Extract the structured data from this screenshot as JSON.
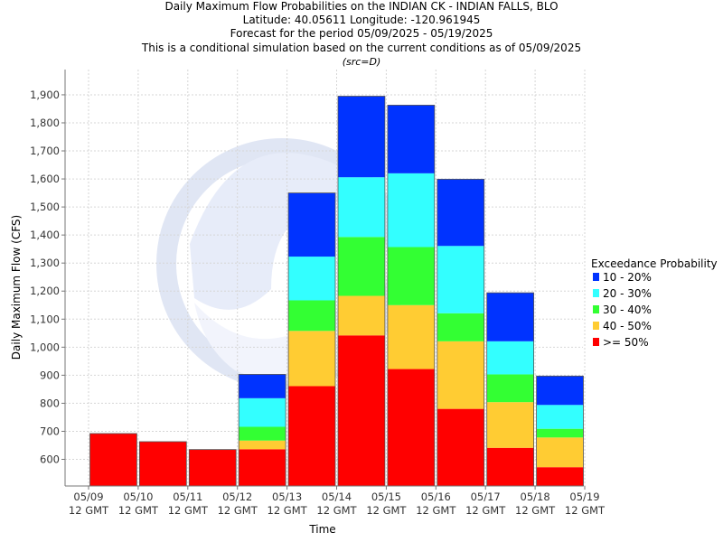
{
  "chart_data": {
    "type": "bar",
    "stacked": true,
    "title_lines": [
      "Daily Maximum Flow Probabilities on the INDIAN CK - INDIAN FALLS, BLO",
      "Latitude: 40.05611 Longitude: -120.961945",
      "Forecast for the period 05/09/2025 - 05/19/2025",
      "This is a conditional simulation based on the current conditions as of 05/09/2025"
    ],
    "subtitle": "(src=D)",
    "xlabel": "Time",
    "ylabel": "Daily Maximum Flow (CFS)",
    "ylim": [
      505,
      1990
    ],
    "yticks": [
      600,
      700,
      800,
      900,
      1000,
      1100,
      1200,
      1300,
      1400,
      1500,
      1600,
      1700,
      1800,
      1900
    ],
    "ytick_labels": [
      "600",
      "700",
      "800",
      "900",
      "1,000",
      "1,100",
      "1,200",
      "1,300",
      "1,400",
      "1,500",
      "1,600",
      "1,700",
      "1,800",
      "1,900"
    ],
    "xticks": [
      {
        "date": "05/09",
        "sub": "12 GMT"
      },
      {
        "date": "05/10",
        "sub": "12 GMT"
      },
      {
        "date": "05/11",
        "sub": "12 GMT"
      },
      {
        "date": "05/12",
        "sub": "12 GMT"
      },
      {
        "date": "05/13",
        "sub": "12 GMT"
      },
      {
        "date": "05/14",
        "sub": "12 GMT"
      },
      {
        "date": "05/15",
        "sub": "12 GMT"
      },
      {
        "date": "05/16",
        "sub": "12 GMT"
      },
      {
        "date": "05/17",
        "sub": "12 GMT"
      },
      {
        "date": "05/18",
        "sub": "12 GMT"
      },
      {
        "date": "05/19",
        "sub": "12 GMT"
      }
    ],
    "grid": true,
    "legend_title": "Exceedance Probability",
    "legend_position": "right",
    "series": [
      {
        "name": "10 - 20%",
        "color": "#0033ff"
      },
      {
        "name": "20 - 30%",
        "color": "#33ffff"
      },
      {
        "name": "30 - 40%",
        "color": "#33ff33"
      },
      {
        "name": "40 - 50%",
        "color": "#ffcc33"
      },
      {
        "name": ">= 50%",
        "color": "#ff0000"
      }
    ],
    "bars": [
      {
        "day": "05/09-05/10",
        "ge50": 692
      },
      {
        "day": "05/10-05/11",
        "ge50": 663
      },
      {
        "day": "05/11-05/12",
        "ge50": 635
      },
      {
        "day": "05/12-05/13",
        "ge50": 636,
        "p40_50": 667,
        "p30_40": 716,
        "p20_30": 818,
        "p10_20": 903
      },
      {
        "day": "05/13-05/14",
        "ge50": 861,
        "p40_50": 1058,
        "p30_40": 1167,
        "p20_30": 1323,
        "p10_20": 1550
      },
      {
        "day": "05/14-05/15",
        "ge50": 1042,
        "p40_50": 1183,
        "p30_40": 1393,
        "p20_30": 1606,
        "p10_20": 1895
      },
      {
        "day": "05/15-05/16",
        "ge50": 922,
        "p40_50": 1150,
        "p30_40": 1357,
        "p20_30": 1620,
        "p10_20": 1863
      },
      {
        "day": "05/16-05/17",
        "ge50": 780,
        "p40_50": 1021,
        "p30_40": 1121,
        "p20_30": 1361,
        "p10_20": 1599
      },
      {
        "day": "05/17-05/18",
        "ge50": 641,
        "p40_50": 804,
        "p30_40": 903,
        "p20_30": 1021,
        "p10_20": 1194
      },
      {
        "day": "05/18-05/19",
        "ge50": 572,
        "p40_50": 678,
        "p30_40": 709,
        "p20_30": 794,
        "p10_20": 897
      }
    ]
  }
}
